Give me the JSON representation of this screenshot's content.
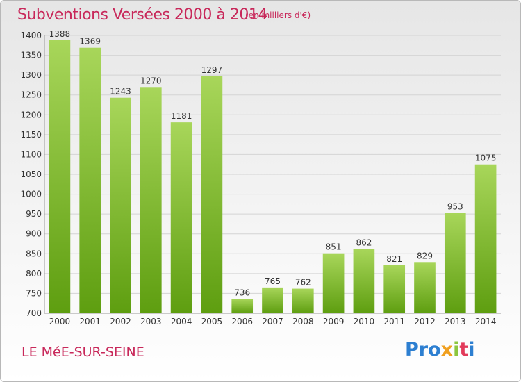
{
  "title": "Subventions Versées 2000 à 2014",
  "unit_note": "(en milliers d'€)",
  "commune": "LE MéE-SUR-SEINE",
  "logo": [
    "Pro",
    "x",
    "i",
    "t",
    "i"
  ],
  "colors": {
    "bar_top": "#a8d65a",
    "bar_bottom": "#5e9e10",
    "title": "#c8285a"
  },
  "chart_data": {
    "type": "bar",
    "categories": [
      "2000",
      "2001",
      "2002",
      "2003",
      "2004",
      "2005",
      "2006",
      "2007",
      "2008",
      "2009",
      "2010",
      "2011",
      "2012",
      "2013",
      "2014"
    ],
    "values": [
      1388,
      1369,
      1243,
      1270,
      1181,
      1297,
      736,
      765,
      762,
      851,
      862,
      821,
      829,
      953,
      1075
    ],
    "ylim": [
      700,
      1400
    ],
    "yticks": [
      700,
      750,
      800,
      850,
      900,
      950,
      1000,
      1050,
      1100,
      1150,
      1200,
      1250,
      1300,
      1350,
      1400
    ],
    "grid": true
  }
}
